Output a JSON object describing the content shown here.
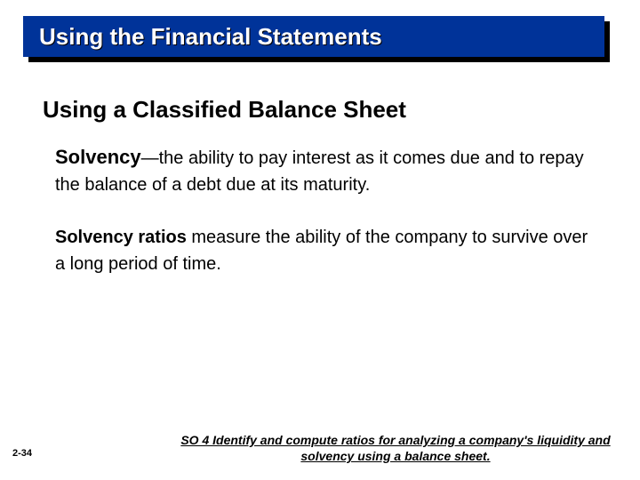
{
  "title": "Using the Financial Statements",
  "subtitle": "Using a Classified Balance Sheet",
  "para1_term": "Solvency",
  "para1_rest": "—the ability to pay interest as it comes due and to repay the balance of a debt due at its maturity.",
  "para2_term": "Solvency ratios",
  "para2_rest": " measure the ability of the company to survive over a long period of time.",
  "page_number": "2-34",
  "footer": "SO 4  Identify and compute ratios for analyzing a company's liquidity and solvency using a balance sheet.",
  "colors": {
    "title_bg": "#003399",
    "title_text": "#ffffff",
    "shadow": "#000000",
    "body_text": "#000000",
    "page_bg": "#ffffff"
  },
  "fontsize": {
    "title": 26,
    "subtitle": 26,
    "body": 20,
    "term": 22,
    "footer": 14,
    "page_num": 11
  }
}
